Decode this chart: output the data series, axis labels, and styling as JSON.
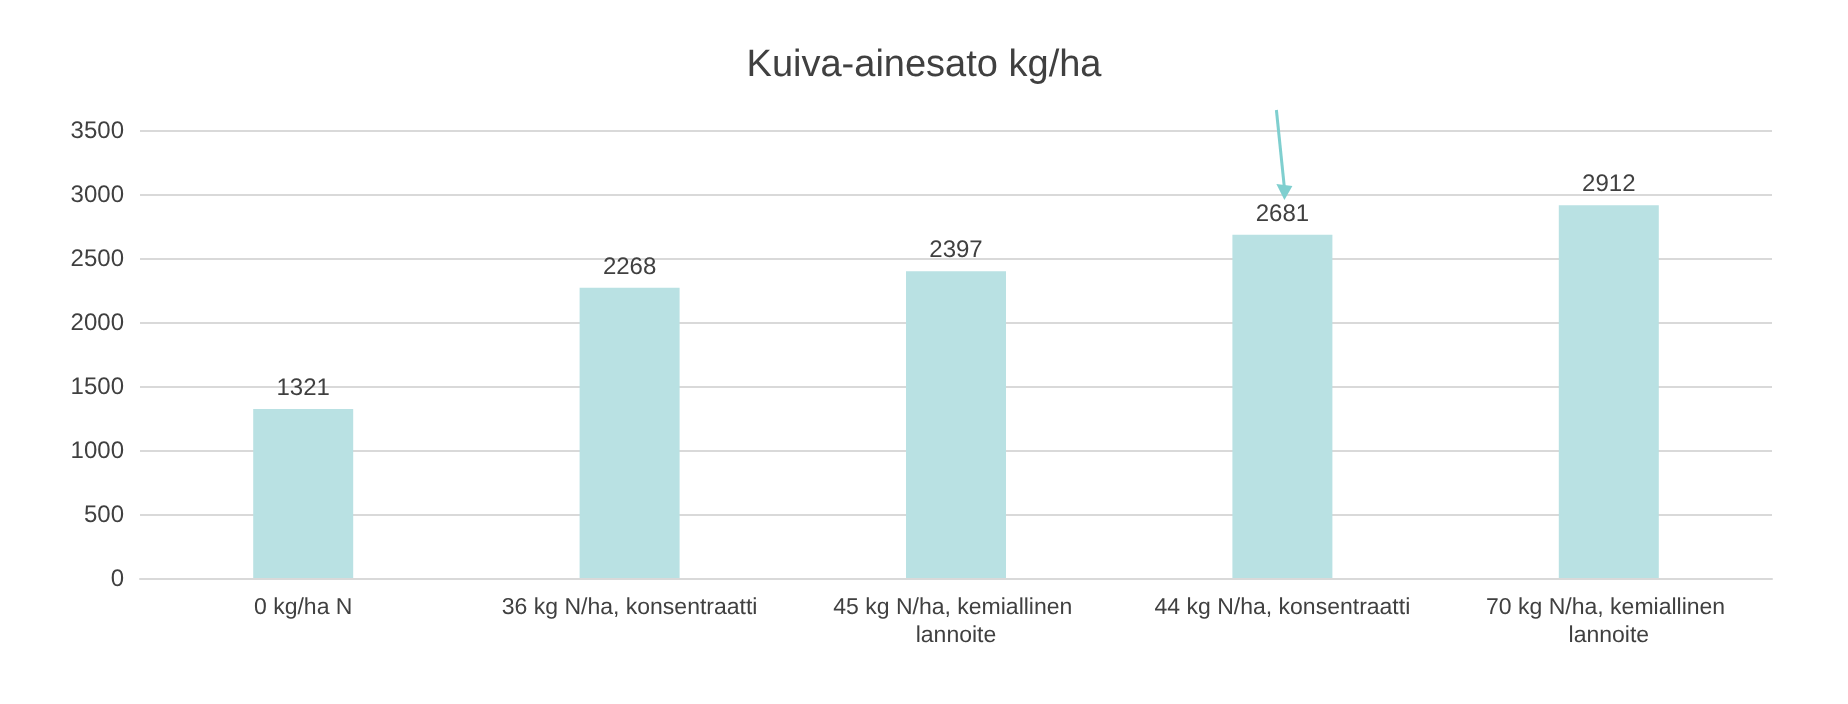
{
  "chart_data": {
    "type": "bar",
    "title": "Kuiva-ainesato kg/ha",
    "categories": [
      "0 kg/ha N",
      "36 kg N/ha, konsentraatti",
      "45 kg N/ha, kemiallinen lannoite",
      "44 kg N/ha, konsentraatti",
      "70 kg N/ha, kemiallinen lannoite"
    ],
    "values": [
      1321,
      2268,
      2397,
      2681,
      2912
    ],
    "color": "#b9e1e3",
    "ylim": [
      0,
      3500
    ],
    "yticks": [
      0,
      500,
      1000,
      1500,
      2000,
      2500,
      3000,
      3500
    ],
    "grid": "y",
    "data_labels": true
  }
}
